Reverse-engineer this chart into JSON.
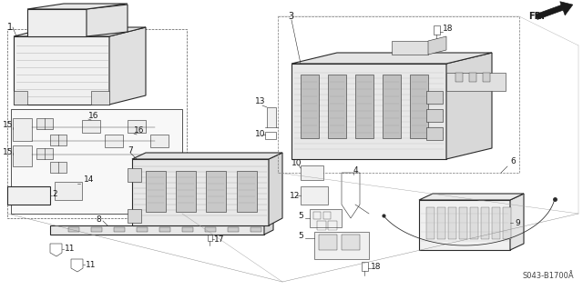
{
  "fig_width": 6.4,
  "fig_height": 3.19,
  "dpi": 100,
  "background_color": "#ffffff",
  "line_color": "#2a2a2a",
  "text_color": "#1a1a1a",
  "diagram_code": "S043-B1700Å",
  "fr_label": "FR.",
  "label_fontsize": 6.5,
  "code_fontsize": 6.0,
  "lw_main": 0.8,
  "lw_thin": 0.4,
  "lw_dashed": 0.5
}
